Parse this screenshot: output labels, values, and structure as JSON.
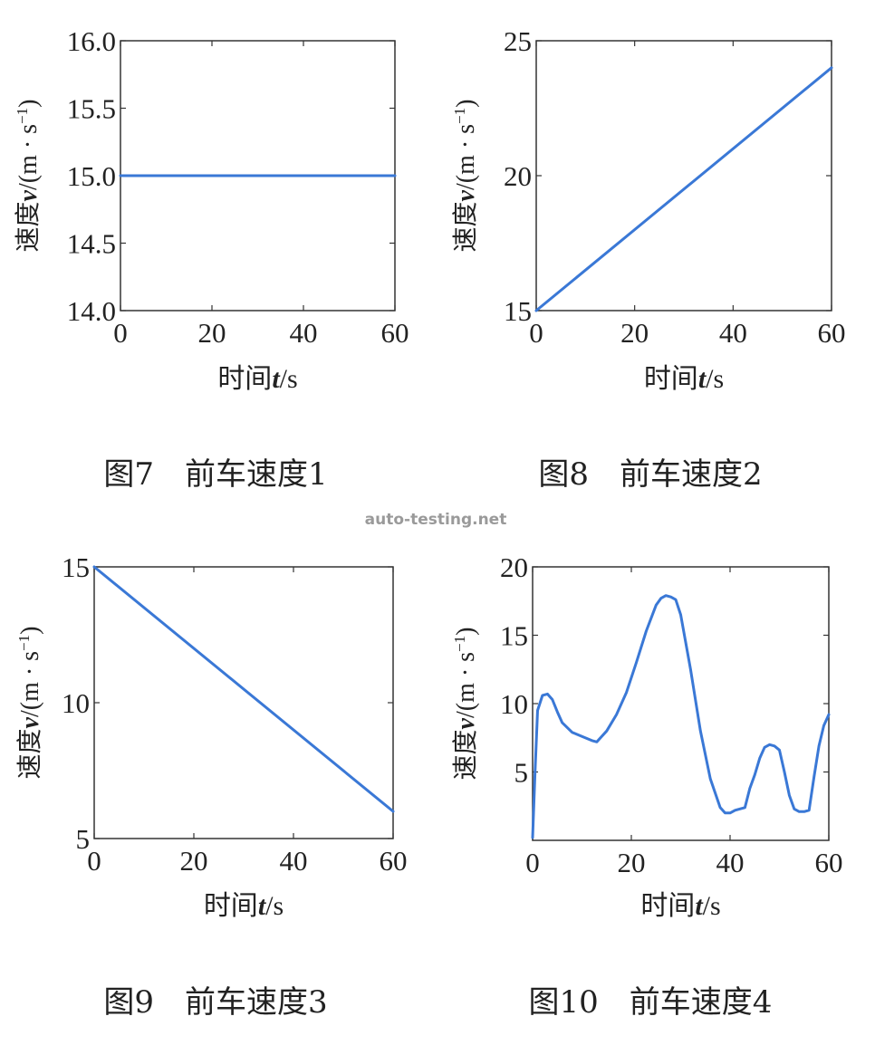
{
  "watermark": "auto-testing.net",
  "line_color": "#3a78d6",
  "chart_data": [
    {
      "type": "line",
      "caption": "图7　前车速度1",
      "xlabel_prefix": "时间",
      "xlabel_var": "t",
      "xlabel_unit": "/s",
      "ylabel_prefix": "速度",
      "ylabel_var": "v",
      "ylabel_unit_open": "/(m · s",
      "ylabel_unit_sup": "−1",
      "ylabel_unit_close": ")",
      "xlim": [
        0,
        60
      ],
      "ylim": [
        14.0,
        16.0
      ],
      "xticks": [
        0,
        20,
        40,
        60
      ],
      "yticks": [
        14.0,
        14.5,
        15.0,
        15.5,
        16.0
      ],
      "ytick_labels": [
        "14.0",
        "14.5",
        "15.0",
        "15.5",
        "16.0"
      ],
      "x": [
        0,
        60
      ],
      "y": [
        15.0,
        15.0
      ]
    },
    {
      "type": "line",
      "caption": "图8　前车速度2",
      "xlabel_prefix": "时间",
      "xlabel_var": "t",
      "xlabel_unit": "/s",
      "ylabel_prefix": "速度",
      "ylabel_var": "v",
      "ylabel_unit_open": "/(m · s",
      "ylabel_unit_sup": "−1",
      "ylabel_unit_close": ")",
      "xlim": [
        0,
        60
      ],
      "ylim": [
        15,
        25
      ],
      "xticks": [
        0,
        20,
        40,
        60
      ],
      "yticks": [
        15,
        20,
        25
      ],
      "ytick_labels": [
        "15",
        "20",
        "25"
      ],
      "x": [
        0,
        60
      ],
      "y": [
        15,
        24
      ]
    },
    {
      "type": "line",
      "caption": "图9　前车速度3",
      "xlabel_prefix": "时间",
      "xlabel_var": "t",
      "xlabel_unit": "/s",
      "ylabel_prefix": "速度",
      "ylabel_var": "v",
      "ylabel_unit_open": "/(m · s",
      "ylabel_unit_sup": "−1",
      "ylabel_unit_close": ")",
      "xlim": [
        0,
        60
      ],
      "ylim": [
        5,
        15
      ],
      "xticks": [
        0,
        20,
        40,
        60
      ],
      "yticks": [
        5,
        10,
        15
      ],
      "ytick_labels": [
        "5",
        "10",
        "15"
      ],
      "x": [
        0,
        60
      ],
      "y": [
        15,
        6
      ]
    },
    {
      "type": "line",
      "caption": "图10　前车速度4",
      "xlabel_prefix": "时间",
      "xlabel_var": "t",
      "xlabel_unit": "/s",
      "ylabel_prefix": "速度",
      "ylabel_var": "v",
      "ylabel_unit_open": "/(m · s",
      "ylabel_unit_sup": "−1",
      "ylabel_unit_close": ")",
      "xlim": [
        0,
        60
      ],
      "ylim": [
        0,
        20
      ],
      "xticks": [
        0,
        20,
        40,
        60
      ],
      "yticks": [
        5,
        10,
        15,
        20
      ],
      "ytick_labels": [
        "5",
        "10",
        "15",
        "20"
      ],
      "x": [
        0,
        0.5,
        1,
        2,
        3,
        4,
        5,
        6,
        8,
        10,
        12,
        13,
        14,
        15,
        17,
        19,
        21,
        23,
        25,
        26,
        27,
        28,
        29,
        30,
        32,
        34,
        36,
        38,
        39,
        40,
        41,
        42,
        43,
        44,
        45,
        46,
        47,
        48,
        49,
        50,
        51,
        52,
        53,
        54,
        55,
        56,
        57,
        58,
        59,
        60
      ],
      "y": [
        0.2,
        5,
        9.5,
        10.6,
        10.7,
        10.3,
        9.4,
        8.6,
        7.9,
        7.6,
        7.3,
        7.2,
        7.6,
        8.0,
        9.2,
        10.8,
        13.0,
        15.3,
        17.2,
        17.7,
        17.9,
        17.8,
        17.6,
        16.5,
        12.5,
        8.0,
        4.5,
        2.4,
        2.0,
        2.0,
        2.2,
        2.3,
        2.4,
        3.8,
        4.8,
        6.0,
        6.8,
        7.0,
        6.9,
        6.6,
        5.0,
        3.3,
        2.3,
        2.1,
        2.1,
        2.2,
        4.6,
        6.9,
        8.4,
        9.2
      ]
    }
  ]
}
